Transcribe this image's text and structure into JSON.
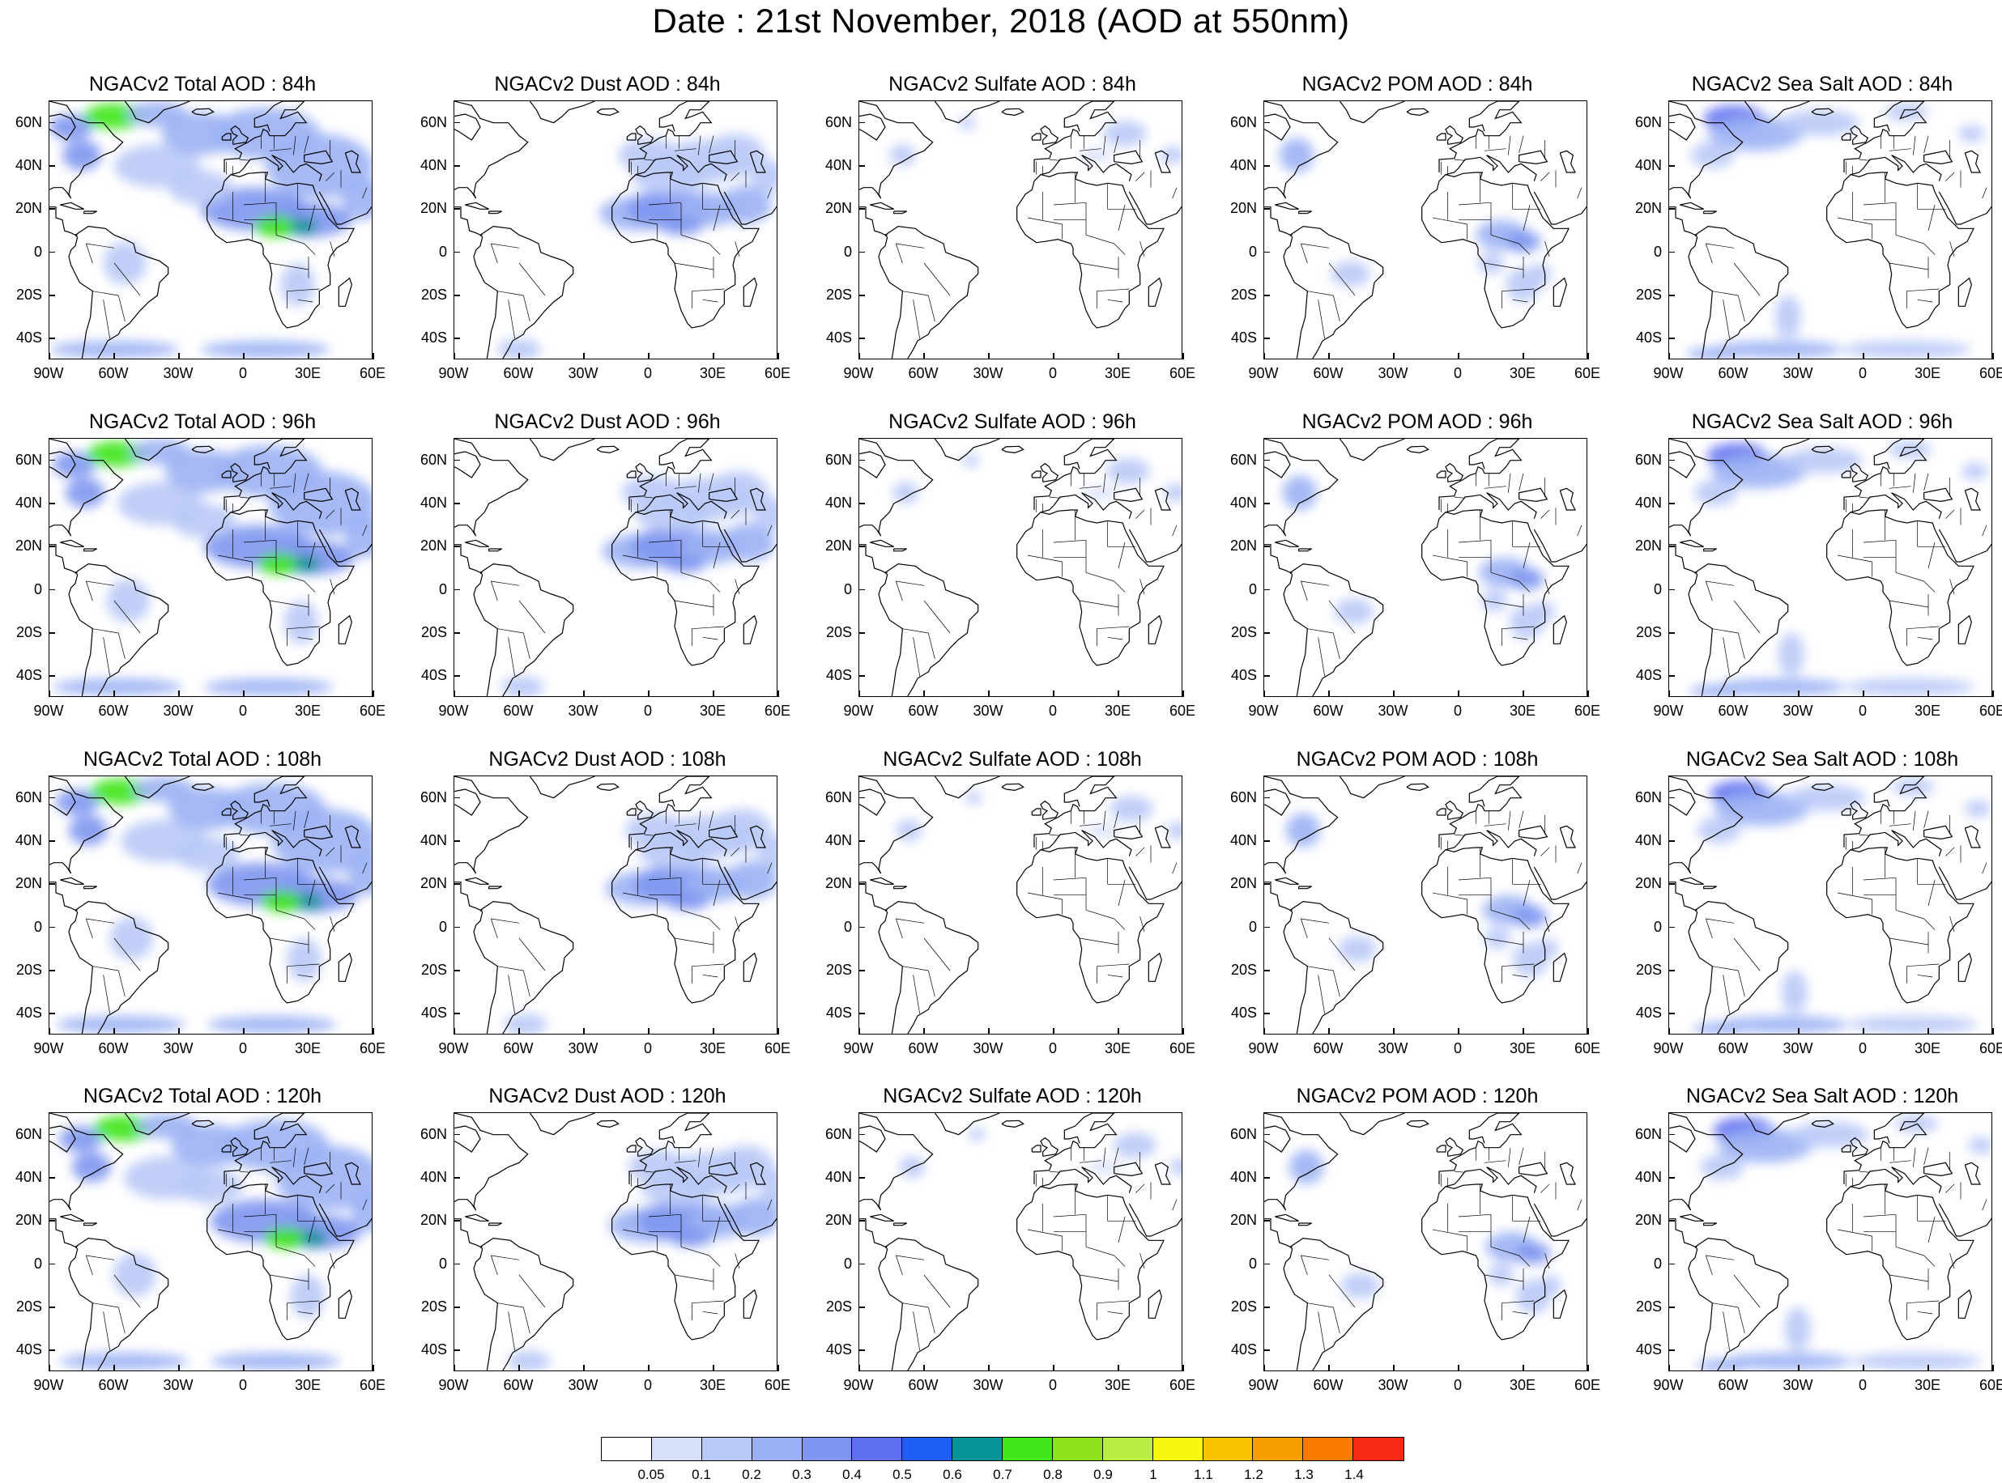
{
  "title": "Date : 21st November, 2018 (AOD at 550nm)",
  "map": {
    "projection": "cylindrical equidistant",
    "lon_range": [
      -90,
      60
    ],
    "lat_range": [
      -50,
      70
    ],
    "lat_ticks": [
      "60N",
      "40N",
      "20N",
      "0",
      "20S",
      "40S"
    ],
    "lat_tick_values": [
      60,
      40,
      20,
      0,
      -20,
      -40
    ],
    "lon_ticks": [
      "90W",
      "60W",
      "30W",
      "0",
      "30E",
      "60E"
    ],
    "lon_tick_values": [
      -90,
      -60,
      -30,
      0,
      30,
      60
    ]
  },
  "panels": [
    {
      "title": "NGACv2 Total AOD : 84h",
      "field": "total",
      "hour": 84
    },
    {
      "title": "NGACv2 Dust AOD : 84h",
      "field": "dust",
      "hour": 84
    },
    {
      "title": "NGACv2 Sulfate AOD : 84h",
      "field": "sulfate",
      "hour": 84
    },
    {
      "title": "NGACv2 POM AOD : 84h",
      "field": "pom",
      "hour": 84
    },
    {
      "title": "NGACv2 Sea Salt AOD : 84h",
      "field": "seasalt",
      "hour": 84
    },
    {
      "title": "NGACv2 Total AOD : 96h",
      "field": "total",
      "hour": 96
    },
    {
      "title": "NGACv2 Dust AOD : 96h",
      "field": "dust",
      "hour": 96
    },
    {
      "title": "NGACv2 Sulfate AOD : 96h",
      "field": "sulfate",
      "hour": 96
    },
    {
      "title": "NGACv2 POM AOD : 96h",
      "field": "pom",
      "hour": 96
    },
    {
      "title": "NGACv2 Sea Salt AOD : 96h",
      "field": "seasalt",
      "hour": 96
    },
    {
      "title": "NGACv2 Total AOD : 108h",
      "field": "total",
      "hour": 108
    },
    {
      "title": "NGACv2 Dust AOD : 108h",
      "field": "dust",
      "hour": 108
    },
    {
      "title": "NGACv2 Sulfate AOD : 108h",
      "field": "sulfate",
      "hour": 108
    },
    {
      "title": "NGACv2 POM AOD : 108h",
      "field": "pom",
      "hour": 108
    },
    {
      "title": "NGACv2 Sea Salt AOD : 108h",
      "field": "seasalt",
      "hour": 108
    },
    {
      "title": "NGACv2 Total AOD : 120h",
      "field": "total",
      "hour": 120
    },
    {
      "title": "NGACv2 Dust AOD : 120h",
      "field": "dust",
      "hour": 120
    },
    {
      "title": "NGACv2 Sulfate AOD : 120h",
      "field": "sulfate",
      "hour": 120
    },
    {
      "title": "NGACv2 POM AOD : 120h",
      "field": "pom",
      "hour": 120
    },
    {
      "title": "NGACv2 Sea Salt  AOD : 120h",
      "field": "seasalt",
      "hour": 120
    }
  ],
  "colorbar": {
    "labels": [
      "0.05",
      "0.1",
      "0.2",
      "0.3",
      "0.4",
      "0.5",
      "0.6",
      "0.7",
      "0.8",
      "0.9",
      "1",
      "1.1",
      "1.2",
      "1.3",
      "1.4"
    ],
    "colors": [
      "#ffffff",
      "#d6e0fb",
      "#b9c9f7",
      "#9cb1f4",
      "#7f96f0",
      "#5f6ff0",
      "#1f5ff5",
      "#069499",
      "#3fe61a",
      "#8ee01a",
      "#b9ec44",
      "#f7f70f",
      "#f8c300",
      "#f99e00",
      "#f97c00",
      "#f82a14"
    ]
  }
}
